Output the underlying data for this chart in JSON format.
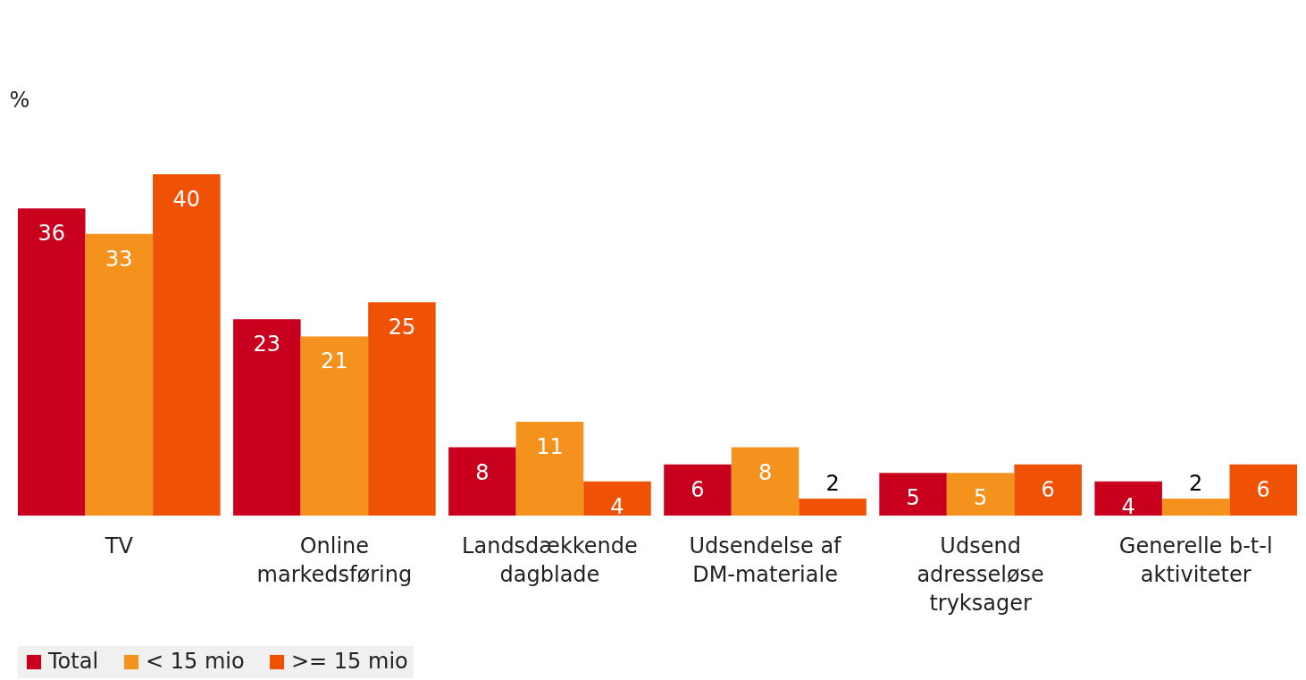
{
  "chart_data": {
    "type": "bar",
    "ylabel": "%",
    "categories": [
      "TV",
      "Online markedsføring",
      "Landsdækkende dagblade",
      "Udsendelse af DM-materiale",
      "Udsend adresseløse tryksager",
      "Generelle b-t-l aktiviteter"
    ],
    "series": [
      {
        "name": "Total",
        "color": "#c8001e",
        "values": [
          36,
          23,
          8,
          6,
          5,
          4
        ]
      },
      {
        "name": "< 15 mio",
        "color": "#f5921e",
        "values": [
          33,
          21,
          11,
          8,
          5,
          2
        ]
      },
      {
        "name": ">= 15 mio",
        "color": "#f05205",
        "values": [
          40,
          25,
          4,
          2,
          6,
          6
        ]
      }
    ],
    "data_labels": true,
    "legend": "bottom",
    "grid": false
  }
}
